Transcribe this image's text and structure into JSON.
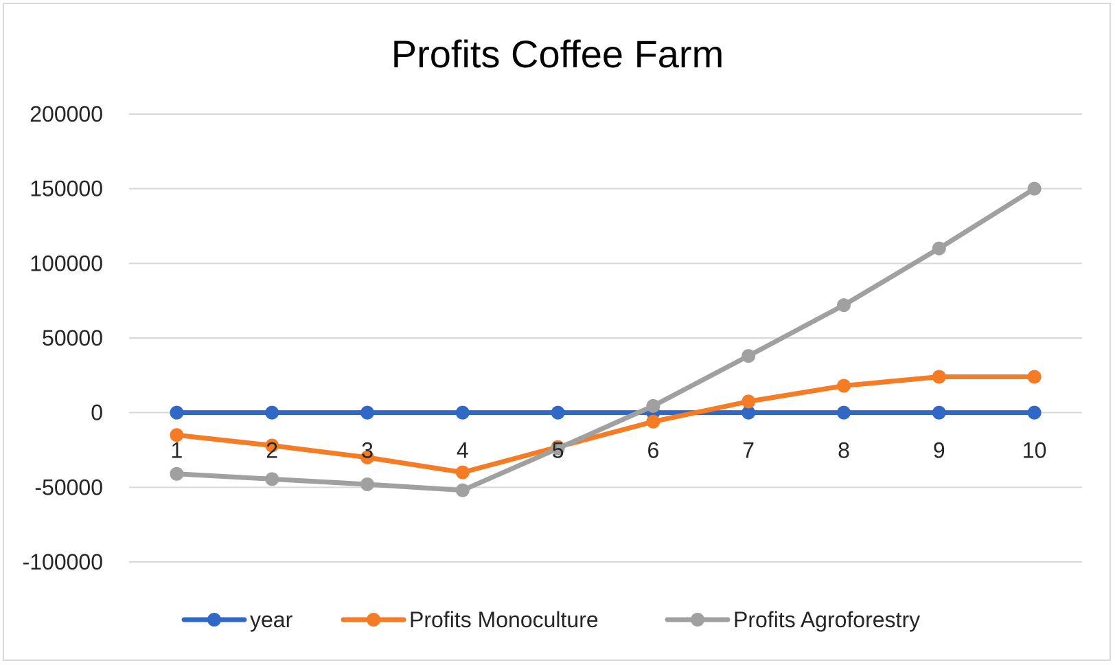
{
  "chart_data": {
    "type": "line",
    "title": "Profits Coffee Farm",
    "categories": [
      "1",
      "2",
      "3",
      "4",
      "5",
      "6",
      "7",
      "8",
      "9",
      "10"
    ],
    "ylim": [
      -100000,
      200000
    ],
    "yticks": [
      200000,
      150000,
      100000,
      50000,
      0,
      -50000,
      -100000
    ],
    "grid": true,
    "legend_position": "bottom",
    "series": [
      {
        "name": "year",
        "color": "#2f68c6",
        "values": [
          1,
          2,
          3,
          4,
          5,
          6,
          7,
          8,
          9,
          10
        ]
      },
      {
        "name": "Profits Monoculture",
        "color": "#f57c24",
        "values": [
          -15000,
          -22000,
          -30000,
          -40000,
          -23000,
          -6000,
          7500,
          18000,
          24000,
          24000
        ]
      },
      {
        "name": "Profits Agroforestry",
        "color": "#a0a0a0",
        "values": [
          -41000,
          -44500,
          -48000,
          -52000,
          -24000,
          4500,
          38000,
          72000,
          110000,
          150000
        ]
      }
    ]
  }
}
